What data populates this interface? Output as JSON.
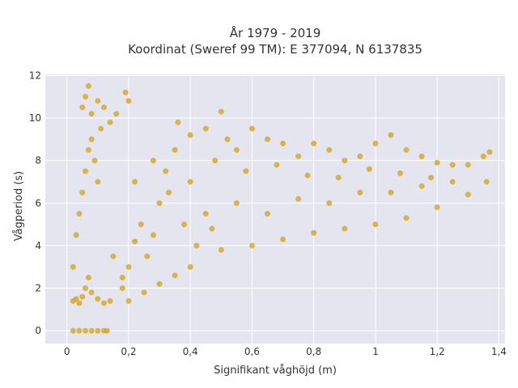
{
  "chart_data": {
    "type": "scatter",
    "title_line1": "År 1979 - 2019",
    "title_line2": "Koordinat (Sweref 99 TM): E 377094, N 6137835",
    "xlabel": "Signifikant våghöjd (m)",
    "ylabel": "Vågperiod (s)",
    "xlim": [
      -0.07,
      1.42
    ],
    "ylim": [
      -0.6,
      12.05
    ],
    "xticks": [
      {
        "value": 0,
        "label": "0"
      },
      {
        "value": 0.2,
        "label": "0,2"
      },
      {
        "value": 0.4,
        "label": "0,4"
      },
      {
        "value": 0.6,
        "label": "0,6"
      },
      {
        "value": 0.8,
        "label": "0,8"
      },
      {
        "value": 1.0,
        "label": "1"
      },
      {
        "value": 1.2,
        "label": "1,2"
      },
      {
        "value": 1.4,
        "label": "1,4"
      }
    ],
    "yticks": [
      {
        "value": 0,
        "label": "0"
      },
      {
        "value": 2,
        "label": "2"
      },
      {
        "value": 4,
        "label": "4"
      },
      {
        "value": 6,
        "label": "6"
      },
      {
        "value": 8,
        "label": "8"
      },
      {
        "value": 10,
        "label": "10"
      },
      {
        "value": 12,
        "label": "12"
      }
    ],
    "grid": true,
    "background": "#e5e5f0",
    "marker_color": "#d4a520",
    "series": [
      {
        "points": [
          [
            0.02,
            1.4
          ],
          [
            0.03,
            1.5
          ],
          [
            0.04,
            1.3
          ],
          [
            0.05,
            1.6
          ],
          [
            0.06,
            2.0
          ],
          [
            0.07,
            2.5
          ],
          [
            0.08,
            1.8
          ],
          [
            0.1,
            1.5
          ],
          [
            0.12,
            1.3
          ],
          [
            0.14,
            1.4
          ],
          [
            0.02,
            3.0
          ],
          [
            0.03,
            4.5
          ],
          [
            0.04,
            5.5
          ],
          [
            0.05,
            6.5
          ],
          [
            0.06,
            7.5
          ],
          [
            0.07,
            8.5
          ],
          [
            0.08,
            9.0
          ],
          [
            0.09,
            8.0
          ],
          [
            0.1,
            7.0
          ],
          [
            0.11,
            9.5
          ],
          [
            0.05,
            10.5
          ],
          [
            0.06,
            11.0
          ],
          [
            0.07,
            11.5
          ],
          [
            0.08,
            10.2
          ],
          [
            0.1,
            10.8
          ],
          [
            0.12,
            10.5
          ],
          [
            0.14,
            9.8
          ],
          [
            0.16,
            10.2
          ],
          [
            0.19,
            11.2
          ],
          [
            0.2,
            10.8
          ],
          [
            0.15,
            3.5
          ],
          [
            0.18,
            2.5
          ],
          [
            0.2,
            3.0
          ],
          [
            0.22,
            4.2
          ],
          [
            0.24,
            5.0
          ],
          [
            0.26,
            3.5
          ],
          [
            0.28,
            4.5
          ],
          [
            0.3,
            6.0
          ],
          [
            0.32,
            7.5
          ],
          [
            0.35,
            8.5
          ],
          [
            0.36,
            9.8
          ],
          [
            0.4,
            9.2
          ],
          [
            0.45,
            9.5
          ],
          [
            0.5,
            10.3
          ],
          [
            0.52,
            9.0
          ],
          [
            0.55,
            8.5
          ],
          [
            0.6,
            9.5
          ],
          [
            0.65,
            9.0
          ],
          [
            0.7,
            8.8
          ],
          [
            0.75,
            8.2
          ],
          [
            0.8,
            8.8
          ],
          [
            0.85,
            8.5
          ],
          [
            0.9,
            8.0
          ],
          [
            0.95,
            8.2
          ],
          [
            1.0,
            8.8
          ],
          [
            1.05,
            9.2
          ],
          [
            1.1,
            8.5
          ],
          [
            1.15,
            8.2
          ],
          [
            1.2,
            7.9
          ],
          [
            1.25,
            7.8
          ],
          [
            1.3,
            7.8
          ],
          [
            1.35,
            8.2
          ],
          [
            1.37,
            8.4
          ],
          [
            0.4,
            3.0
          ],
          [
            0.5,
            3.8
          ],
          [
            0.6,
            4.0
          ],
          [
            0.7,
            4.3
          ],
          [
            0.8,
            4.6
          ],
          [
            0.9,
            4.8
          ],
          [
            1.0,
            5.0
          ],
          [
            1.1,
            5.3
          ],
          [
            1.2,
            5.8
          ],
          [
            1.3,
            6.4
          ],
          [
            1.36,
            7.0
          ],
          [
            0.45,
            5.5
          ],
          [
            0.55,
            6.0
          ],
          [
            0.65,
            5.5
          ],
          [
            0.75,
            6.2
          ],
          [
            0.85,
            6.0
          ],
          [
            0.95,
            6.5
          ],
          [
            1.05,
            6.5
          ],
          [
            1.15,
            6.8
          ],
          [
            1.25,
            7.0
          ],
          [
            0.02,
            0.0
          ],
          [
            0.04,
            0.0
          ],
          [
            0.06,
            0.0
          ],
          [
            0.08,
            0.0
          ],
          [
            0.1,
            0.0
          ],
          [
            0.12,
            0.0
          ],
          [
            0.13,
            0.0
          ],
          [
            0.3,
            2.2
          ],
          [
            0.35,
            2.6
          ],
          [
            0.25,
            1.8
          ],
          [
            0.2,
            1.4
          ],
          [
            0.18,
            2.0
          ],
          [
            0.4,
            7.0
          ],
          [
            0.48,
            8.0
          ],
          [
            0.58,
            7.5
          ],
          [
            0.68,
            7.8
          ],
          [
            0.78,
            7.3
          ],
          [
            0.88,
            7.2
          ],
          [
            0.98,
            7.6
          ],
          [
            1.08,
            7.4
          ],
          [
            1.18,
            7.2
          ],
          [
            0.22,
            7.0
          ],
          [
            0.28,
            8.0
          ],
          [
            0.33,
            6.5
          ],
          [
            0.38,
            5.0
          ],
          [
            0.42,
            4.0
          ],
          [
            0.47,
            4.8
          ]
        ]
      }
    ]
  }
}
